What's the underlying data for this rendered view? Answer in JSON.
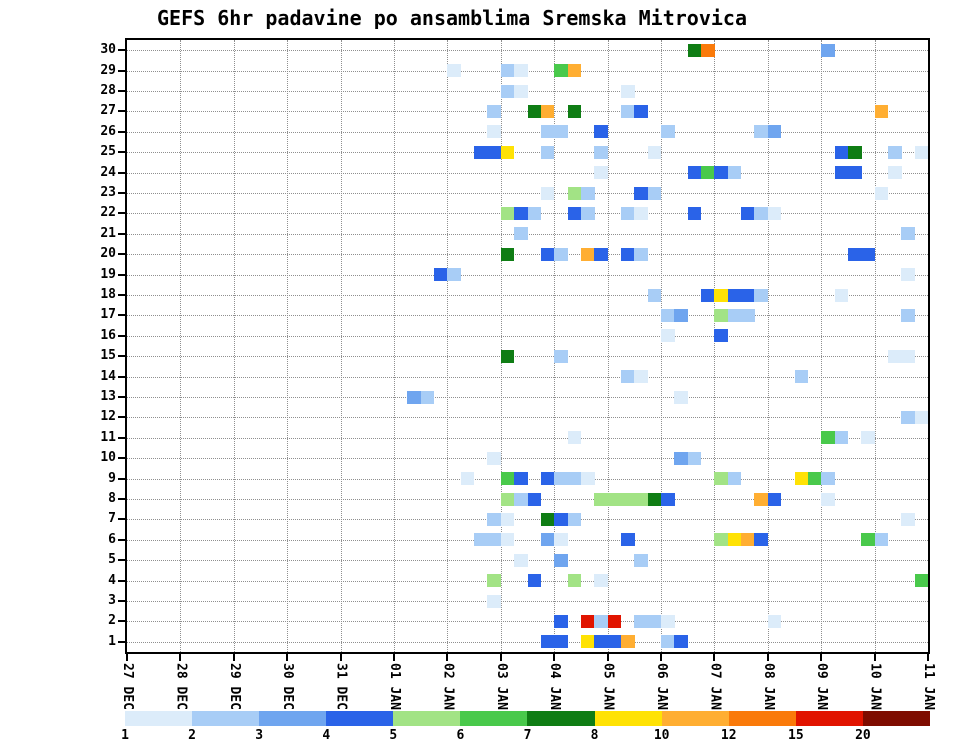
{
  "title": "GEFS 6hr padavine po ansamblima Sremska Mitrovica",
  "chart_data": {
    "type": "heatmap",
    "title": "GEFS 6hr padavine po ansamblima Sremska Mitrovica",
    "description": "GEFS 6-hourly precipitation per ensemble member (1-30) vs forecast time",
    "grid": "dotted",
    "legend_position": "bottom-colorbar",
    "time_steps": 60,
    "steps_per_day": 4,
    "members": 30,
    "x_tick_labels": [
      "27 DEC",
      "28 DEC",
      "29 DEC",
      "30 DEC",
      "31 DEC",
      "01 JAN",
      "02 JAN",
      "03 JAN",
      "04 JAN",
      "05 JAN",
      "06 JAN",
      "07 JAN",
      "08 JAN",
      "09 JAN",
      "10 JAN",
      "11 JAN"
    ],
    "y_tick_labels": [
      "1",
      "2",
      "3",
      "4",
      "5",
      "6",
      "7",
      "8",
      "9",
      "10",
      "11",
      "12",
      "13",
      "14",
      "15",
      "16",
      "17",
      "18",
      "19",
      "20",
      "21",
      "22",
      "23",
      "24",
      "25",
      "26",
      "27",
      "28",
      "29",
      "30"
    ],
    "colorbar": {
      "tick_labels": [
        "1",
        "2",
        "3",
        "4",
        "5",
        "6",
        "7",
        "8",
        "10",
        "12",
        "15",
        "20"
      ],
      "segment_keys": [
        "1",
        "2",
        "3",
        "4",
        "5",
        "6",
        "7",
        "8",
        "10",
        "12",
        "15",
        "20"
      ],
      "colors": {
        "1": "#dcecfa",
        "2": "#a8cdf6",
        "3": "#6fa5ef",
        "4": "#2a63e8",
        "5": "#a2e385",
        "6": "#49c94b",
        "7": "#0f7d14",
        "8": "#ffe204",
        "10": "#ffae32",
        "12": "#fa7a0a",
        "15": "#e11400",
        "20": "#7e0c00"
      }
    },
    "cells": [
      [
        30,
        42,
        7
      ],
      [
        30,
        43,
        12
      ],
      [
        30,
        52,
        3
      ],
      [
        29,
        24,
        1
      ],
      [
        29,
        28,
        2
      ],
      [
        29,
        29,
        1
      ],
      [
        29,
        32,
        6
      ],
      [
        29,
        33,
        10
      ],
      [
        28,
        28,
        2
      ],
      [
        28,
        29,
        1
      ],
      [
        28,
        37,
        1
      ],
      [
        27,
        27,
        2
      ],
      [
        27,
        30,
        7
      ],
      [
        27,
        31,
        10
      ],
      [
        27,
        33,
        7
      ],
      [
        27,
        37,
        2
      ],
      [
        27,
        38,
        4
      ],
      [
        27,
        56,
        10
      ],
      [
        26,
        27,
        1
      ],
      [
        26,
        31,
        2
      ],
      [
        26,
        32,
        2
      ],
      [
        26,
        35,
        4
      ],
      [
        26,
        40,
        2
      ],
      [
        26,
        47,
        2
      ],
      [
        26,
        48,
        3
      ],
      [
        25,
        26,
        4
      ],
      [
        25,
        27,
        4
      ],
      [
        25,
        28,
        8
      ],
      [
        25,
        31,
        2
      ],
      [
        25,
        35,
        2
      ],
      [
        25,
        39,
        1
      ],
      [
        25,
        53,
        4
      ],
      [
        25,
        54,
        7
      ],
      [
        25,
        57,
        2
      ],
      [
        25,
        59,
        1
      ],
      [
        24,
        35,
        1
      ],
      [
        24,
        42,
        4
      ],
      [
        24,
        43,
        6
      ],
      [
        24,
        44,
        4
      ],
      [
        24,
        45,
        2
      ],
      [
        24,
        53,
        4
      ],
      [
        24,
        54,
        4
      ],
      [
        24,
        57,
        1
      ],
      [
        23,
        31,
        1
      ],
      [
        23,
        33,
        5
      ],
      [
        23,
        34,
        2
      ],
      [
        23,
        38,
        4
      ],
      [
        23,
        39,
        2
      ],
      [
        23,
        56,
        1
      ],
      [
        22,
        28,
        5
      ],
      [
        22,
        29,
        4
      ],
      [
        22,
        30,
        2
      ],
      [
        22,
        33,
        4
      ],
      [
        22,
        34,
        2
      ],
      [
        22,
        37,
        2
      ],
      [
        22,
        38,
        1
      ],
      [
        22,
        42,
        4
      ],
      [
        22,
        46,
        4
      ],
      [
        22,
        47,
        2
      ],
      [
        22,
        48,
        1
      ],
      [
        21,
        29,
        2
      ],
      [
        21,
        58,
        2
      ],
      [
        20,
        28,
        7
      ],
      [
        20,
        31,
        4
      ],
      [
        20,
        32,
        2
      ],
      [
        20,
        34,
        10
      ],
      [
        20,
        35,
        4
      ],
      [
        20,
        37,
        4
      ],
      [
        20,
        38,
        2
      ],
      [
        20,
        54,
        4
      ],
      [
        20,
        55,
        4
      ],
      [
        19,
        23,
        4
      ],
      [
        19,
        24,
        2
      ],
      [
        19,
        58,
        1
      ],
      [
        18,
        39,
        2
      ],
      [
        18,
        43,
        4
      ],
      [
        18,
        44,
        8
      ],
      [
        18,
        45,
        4
      ],
      [
        18,
        46,
        4
      ],
      [
        18,
        47,
        2
      ],
      [
        18,
        53,
        1
      ],
      [
        17,
        40,
        2
      ],
      [
        17,
        41,
        3
      ],
      [
        17,
        44,
        5
      ],
      [
        17,
        45,
        2
      ],
      [
        17,
        46,
        2
      ],
      [
        17,
        58,
        2
      ],
      [
        16,
        40,
        1
      ],
      [
        16,
        44,
        4
      ],
      [
        15,
        28,
        7
      ],
      [
        15,
        32,
        2
      ],
      [
        15,
        57,
        1
      ],
      [
        15,
        58,
        1
      ],
      [
        14,
        37,
        2
      ],
      [
        14,
        38,
        1
      ],
      [
        14,
        50,
        2
      ],
      [
        13,
        21,
        3
      ],
      [
        13,
        22,
        2
      ],
      [
        13,
        41,
        1
      ],
      [
        12,
        58,
        2
      ],
      [
        12,
        59,
        1
      ],
      [
        11,
        33,
        1
      ],
      [
        11,
        52,
        6
      ],
      [
        11,
        53,
        2
      ],
      [
        11,
        55,
        1
      ],
      [
        10,
        27,
        1
      ],
      [
        10,
        41,
        3
      ],
      [
        10,
        42,
        2
      ],
      [
        9,
        25,
        1
      ],
      [
        9,
        28,
        6
      ],
      [
        9,
        29,
        4
      ],
      [
        9,
        31,
        4
      ],
      [
        9,
        32,
        2
      ],
      [
        9,
        33,
        2
      ],
      [
        9,
        34,
        1
      ],
      [
        9,
        44,
        5
      ],
      [
        9,
        45,
        2
      ],
      [
        9,
        50,
        8
      ],
      [
        9,
        51,
        6
      ],
      [
        9,
        52,
        2
      ],
      [
        8,
        28,
        5
      ],
      [
        8,
        29,
        2
      ],
      [
        8,
        30,
        4
      ],
      [
        8,
        35,
        5
      ],
      [
        8,
        36,
        5
      ],
      [
        8,
        37,
        5
      ],
      [
        8,
        38,
        5
      ],
      [
        8,
        39,
        7
      ],
      [
        8,
        40,
        4
      ],
      [
        8,
        47,
        10
      ],
      [
        8,
        48,
        4
      ],
      [
        8,
        52,
        1
      ],
      [
        7,
        27,
        2
      ],
      [
        7,
        28,
        1
      ],
      [
        7,
        31,
        7
      ],
      [
        7,
        32,
        4
      ],
      [
        7,
        33,
        2
      ],
      [
        7,
        58,
        1
      ],
      [
        6,
        26,
        2
      ],
      [
        6,
        27,
        2
      ],
      [
        6,
        28,
        1
      ],
      [
        6,
        31,
        3
      ],
      [
        6,
        32,
        1
      ],
      [
        6,
        37,
        4
      ],
      [
        6,
        44,
        5
      ],
      [
        6,
        45,
        8
      ],
      [
        6,
        46,
        10
      ],
      [
        6,
        47,
        4
      ],
      [
        6,
        55,
        6
      ],
      [
        6,
        56,
        2
      ],
      [
        5,
        29,
        1
      ],
      [
        5,
        32,
        3
      ],
      [
        5,
        38,
        2
      ],
      [
        4,
        27,
        5
      ],
      [
        4,
        30,
        4
      ],
      [
        4,
        33,
        5
      ],
      [
        4,
        35,
        1
      ],
      [
        4,
        59,
        6
      ],
      [
        3,
        27,
        1
      ],
      [
        2,
        32,
        4
      ],
      [
        2,
        34,
        15
      ],
      [
        2,
        35,
        2
      ],
      [
        2,
        36,
        15
      ],
      [
        2,
        38,
        2
      ],
      [
        2,
        39,
        2
      ],
      [
        2,
        40,
        1
      ],
      [
        2,
        48,
        1
      ],
      [
        1,
        31,
        4
      ],
      [
        1,
        32,
        4
      ],
      [
        1,
        34,
        8
      ],
      [
        1,
        35,
        4
      ],
      [
        1,
        36,
        4
      ],
      [
        1,
        37,
        10
      ],
      [
        1,
        40,
        2
      ],
      [
        1,
        41,
        4
      ]
    ]
  }
}
